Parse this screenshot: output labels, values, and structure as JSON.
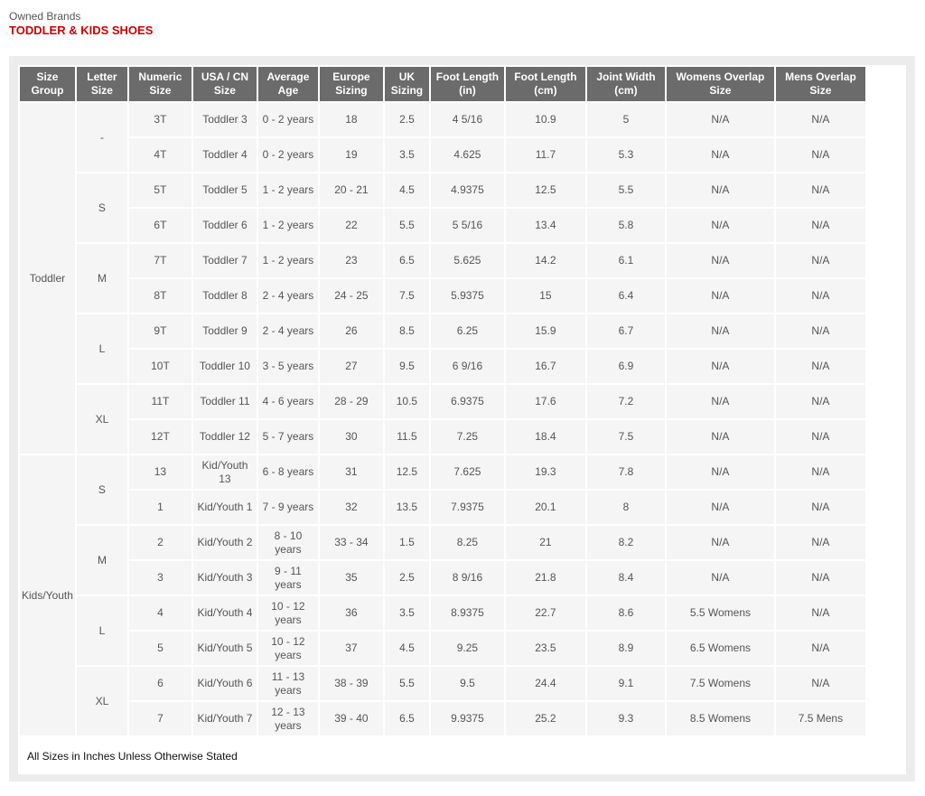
{
  "header": {
    "brand": "Owned Brands",
    "title": "TODDLER & KIDS SHOES"
  },
  "colors": {
    "title": "#cc0000",
    "header_bg": "#6b6b6b",
    "cell_bg": "#f5f5f5"
  },
  "columns": [
    "Size Group",
    "Letter Size",
    "Numeric Size",
    "USA / CN Size",
    "Average Age",
    "Europe Sizing",
    "UK Sizing",
    "Foot Length (in)",
    "Foot Length (cm)",
    "Joint Width (cm)",
    "Womens Overlap Size",
    "Mens Overlap Size"
  ],
  "groups": [
    {
      "label": "Toddler",
      "letters": [
        {
          "label": "-",
          "rows": [
            [
              "3T",
              "Toddler 3",
              "0 - 2 years",
              "18",
              "2.5",
              "4 5/16",
              "10.9",
              "5",
              "N/A",
              "N/A"
            ],
            [
              "4T",
              "Toddler 4",
              "0 - 2 years",
              "19",
              "3.5",
              "4.625",
              "11.7",
              "5.3",
              "N/A",
              "N/A"
            ]
          ]
        },
        {
          "label": "S",
          "rows": [
            [
              "5T",
              "Toddler 5",
              "1 - 2 years",
              "20 - 21",
              "4.5",
              "4.9375",
              "12.5",
              "5.5",
              "N/A",
              "N/A"
            ],
            [
              "6T",
              "Toddler 6",
              "1 - 2 years",
              "22",
              "5.5",
              "5 5/16",
              "13.4",
              "5.8",
              "N/A",
              "N/A"
            ]
          ]
        },
        {
          "label": "M",
          "rows": [
            [
              "7T",
              "Toddler 7",
              "1 - 2 years",
              "23",
              "6.5",
              "5.625",
              "14.2",
              "6.1",
              "N/A",
              "N/A"
            ],
            [
              "8T",
              "Toddler 8",
              "2 - 4 years",
              "24 - 25",
              "7.5",
              "5.9375",
              "15",
              "6.4",
              "N/A",
              "N/A"
            ]
          ]
        },
        {
          "label": "L",
          "rows": [
            [
              "9T",
              "Toddler 9",
              "2 - 4 years",
              "26",
              "8.5",
              "6.25",
              "15.9",
              "6.7",
              "N/A",
              "N/A"
            ],
            [
              "10T",
              "Toddler 10",
              "3 - 5 years",
              "27",
              "9.5",
              "6 9/16",
              "16.7",
              "6.9",
              "N/A",
              "N/A"
            ]
          ]
        },
        {
          "label": "XL",
          "rows": [
            [
              "11T",
              "Toddler 11",
              "4 - 6 years",
              "28 - 29",
              "10.5",
              "6.9375",
              "17.6",
              "7.2",
              "N/A",
              "N/A"
            ],
            [
              "12T",
              "Toddler 12",
              "5 - 7 years",
              "30",
              "11.5",
              "7.25",
              "18.4",
              "7.5",
              "N/A",
              "N/A"
            ]
          ]
        }
      ]
    },
    {
      "label": "Kids/Youth",
      "letters": [
        {
          "label": "S",
          "rows": [
            [
              "13",
              "Kid/Youth 13",
              "6 - 8 years",
              "31",
              "12.5",
              "7.625",
              "19.3",
              "7.8",
              "N/A",
              "N/A"
            ],
            [
              "1",
              "Kid/Youth 1",
              "7 - 9 years",
              "32",
              "13.5",
              "7.9375",
              "20.1",
              "8",
              "N/A",
              "N/A"
            ]
          ]
        },
        {
          "label": "M",
          "rows": [
            [
              "2",
              "Kid/Youth 2",
              "8 - 10 years",
              "33 - 34",
              "1.5",
              "8.25",
              "21",
              "8.2",
              "N/A",
              "N/A"
            ],
            [
              "3",
              "Kid/Youth 3",
              "9 - 11 years",
              "35",
              "2.5",
              "8 9/16",
              "21.8",
              "8.4",
              "N/A",
              "N/A"
            ]
          ]
        },
        {
          "label": "L",
          "rows": [
            [
              "4",
              "Kid/Youth 4",
              "10 - 12 years",
              "36",
              "3.5",
              "8.9375",
              "22.7",
              "8.6",
              "5.5 Womens",
              "N/A"
            ],
            [
              "5",
              "Kid/Youth 5",
              "10 - 12 years",
              "37",
              "4.5",
              "9.25",
              "23.5",
              "8.9",
              "6.5 Womens",
              "N/A"
            ]
          ]
        },
        {
          "label": "XL",
          "rows": [
            [
              "6",
              "Kid/Youth 6",
              "11 - 13 years",
              "38 - 39",
              "5.5",
              "9.5",
              "24.4",
              "9.1",
              "7.5 Womens",
              "N/A"
            ],
            [
              "7",
              "Kid/Youth 7",
              "12 - 13 years",
              "39 - 40",
              "6.5",
              "9.9375",
              "25.2",
              "9.3",
              "8.5 Womens",
              "7.5 Mens"
            ]
          ]
        }
      ]
    }
  ],
  "footer": "All Sizes in Inches Unless Otherwise Stated"
}
